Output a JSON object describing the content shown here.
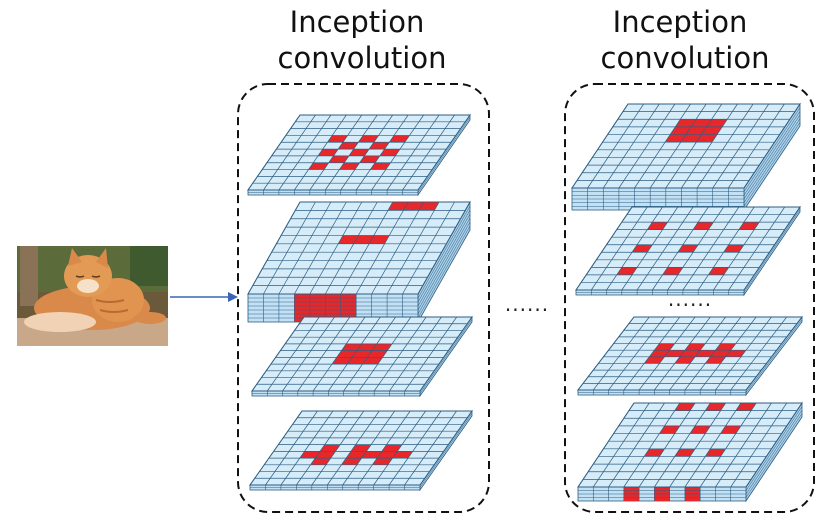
{
  "columns": [
    {
      "title_line1": "Inception",
      "title_line2": "convolution",
      "ellipsis": "......"
    },
    {
      "title_line1": "Inception",
      "title_line2": "convolution",
      "ellipsis": "......"
    }
  ],
  "between_ellipsis": "......",
  "input_image": {
    "subject": "cat photo"
  },
  "colors": {
    "grid_face": "#d6ecf8",
    "grid_line": "#2e5e82",
    "kernel": "#e8272b",
    "arrow": "#3a66b4"
  },
  "layers": {
    "col1": [
      {
        "layer": 1,
        "kernel": "dilated 3x3, rate 2",
        "thickness": "thin"
      },
      {
        "layer": 2,
        "kernel": "1x3 / 3x1 strip",
        "thickness": "thick"
      },
      {
        "layer": 3,
        "kernel": "3x3 dense",
        "thickness": "thin"
      },
      {
        "layer": 4,
        "kernel": "3x1 columns",
        "thickness": "thin"
      }
    ],
    "col2": [
      {
        "layer": 1,
        "kernel": "3x3 dense",
        "thickness": "thick"
      },
      {
        "layer": 2,
        "kernel": "dilated 3x3, rate 3",
        "thickness": "thin"
      },
      {
        "layer": 3,
        "kernel": "3x1 columns",
        "thickness": "thin"
      },
      {
        "layer": 4,
        "kernel": "1x3 rows dilated",
        "thickness": "thick"
      }
    ]
  }
}
